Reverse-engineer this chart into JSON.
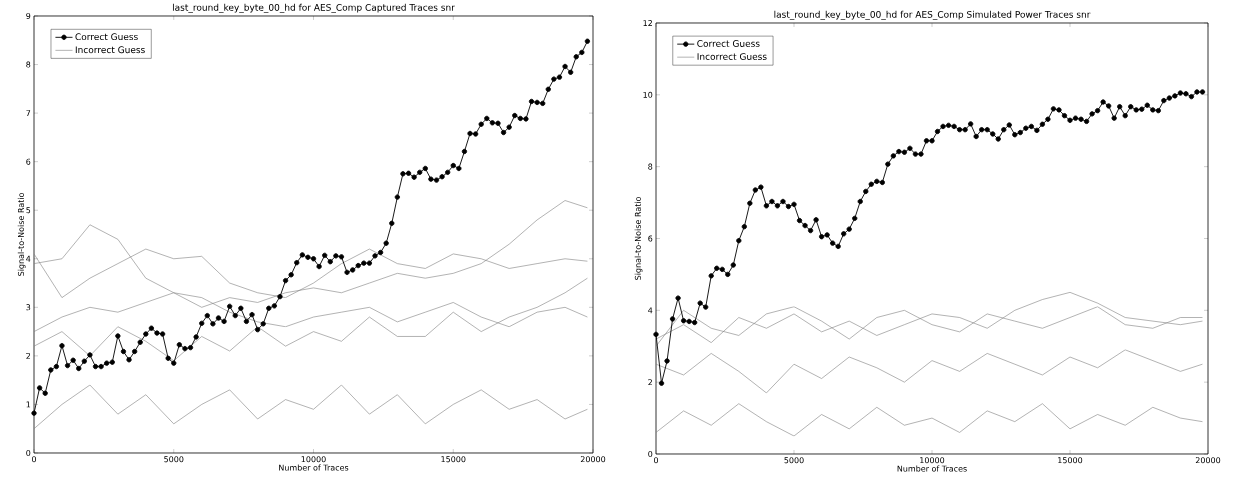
{
  "chart_data": [
    {
      "type": "line",
      "title": "last_round_key_byte_00_hd for AES_Comp Captured Traces snr",
      "xlabel": "Number of Traces",
      "ylabel": "Signal-to-Noise Ratio",
      "xlim": [
        0,
        20000
      ],
      "ylim": [
        0,
        9
      ],
      "xticks": [
        0,
        5000,
        10000,
        15000,
        20000
      ],
      "yticks": [
        0,
        1,
        2,
        3,
        4,
        5,
        6,
        7,
        8,
        9
      ],
      "legend": "top left",
      "series": [
        {
          "name": "Correct Guess",
          "color": "#000000",
          "marker": "circle",
          "x": [
            0,
            200,
            400,
            600,
            800,
            1000,
            1200,
            1400,
            1600,
            1800,
            2000,
            2200,
            2400,
            2600,
            2800,
            3000,
            3200,
            3400,
            3600,
            3800,
            4000,
            4200,
            4400,
            4600,
            4800,
            5000,
            5200,
            5400,
            5600,
            5800,
            6000,
            6200,
            6400,
            6600,
            6800,
            7000,
            7200,
            7400,
            7600,
            7800,
            8000,
            8200,
            8400,
            8600,
            8800,
            9000,
            9200,
            9400,
            9600,
            9800,
            10000,
            10200,
            10400,
            10600,
            10800,
            11000,
            11200,
            11400,
            11600,
            11800,
            12000,
            12200,
            12400,
            12600,
            12800,
            13000,
            13200,
            13400,
            13600,
            13800,
            14000,
            14200,
            14400,
            14600,
            14800,
            15000,
            15200,
            15400,
            15600,
            15800,
            16000,
            16200,
            16400,
            16600,
            16800,
            17000,
            17200,
            17400,
            17600,
            17800,
            18000,
            18200,
            18400,
            18600,
            18800,
            19000,
            19200,
            19400,
            19600,
            19800
          ],
          "values": [
            0.82,
            1.34,
            1.23,
            1.71,
            1.78,
            2.21,
            1.8,
            1.91,
            1.74,
            1.89,
            2.02,
            1.78,
            1.78,
            1.85,
            1.87,
            2.41,
            2.09,
            1.92,
            2.09,
            2.28,
            2.45,
            2.57,
            2.47,
            2.45,
            1.95,
            1.85,
            2.23,
            2.15,
            2.17,
            2.39,
            2.67,
            2.83,
            2.66,
            2.78,
            2.71,
            3.02,
            2.83,
            2.98,
            2.71,
            2.85,
            2.54,
            2.66,
            2.98,
            3.03,
            3.22,
            3.55,
            3.67,
            3.92,
            4.08,
            4.03,
            4.0,
            3.84,
            4.07,
            3.94,
            4.06,
            4.04,
            3.72,
            3.77,
            3.86,
            3.91,
            3.91,
            4.06,
            4.13,
            4.32,
            4.73,
            5.27,
            5.75,
            5.76,
            5.68,
            5.78,
            5.86,
            5.64,
            5.62,
            5.69,
            5.78,
            5.92,
            5.86,
            6.21,
            6.58,
            6.57,
            6.77,
            6.89,
            6.8,
            6.79,
            6.6,
            6.71,
            6.95,
            6.89,
            6.88,
            7.24,
            7.22,
            7.2,
            7.49,
            7.7,
            7.74,
            7.96,
            7.84,
            8.16,
            8.25,
            8.48
          ]
        },
        {
          "name": "Incorrect Guess",
          "color": "#808080",
          "marker": "none",
          "x": [
            0,
            1000,
            2000,
            3000,
            4000,
            5000,
            6000,
            7000,
            8000,
            9000,
            10000,
            11000,
            12000,
            13000,
            14000,
            15000,
            16000,
            17000,
            18000,
            19000,
            19800
          ],
          "values": [
            2.5,
            2.8,
            3.0,
            2.9,
            3.1,
            3.3,
            3.0,
            3.2,
            3.1,
            3.3,
            3.4,
            3.3,
            3.5,
            3.7,
            3.6,
            3.7,
            3.9,
            4.3,
            4.8,
            5.2,
            5.05
          ]
        },
        {
          "color": "#808080",
          "marker": "none",
          "x": [
            0,
            1000,
            2000,
            3000,
            4000,
            5000,
            6000,
            7000,
            8000,
            9000,
            10000,
            11000,
            12000,
            13000,
            14000,
            15000,
            16000,
            17000,
            18000,
            19000,
            19800
          ],
          "values": [
            3.9,
            4.0,
            4.7,
            4.4,
            3.6,
            3.3,
            3.2,
            2.9,
            2.7,
            2.6,
            2.8,
            2.9,
            3.0,
            2.7,
            2.9,
            3.1,
            2.8,
            2.6,
            2.9,
            3.0,
            2.8
          ]
        },
        {
          "color": "#808080",
          "marker": "none",
          "x": [
            0,
            1000,
            2000,
            3000,
            4000,
            5000,
            6000,
            7000,
            8000,
            9000,
            10000,
            11000,
            12000,
            13000,
            14000,
            15000,
            16000,
            17000,
            18000,
            19000,
            19800
          ],
          "values": [
            4.1,
            3.2,
            3.6,
            3.9,
            4.2,
            4.0,
            4.05,
            3.5,
            3.3,
            3.2,
            3.5,
            3.9,
            4.2,
            3.9,
            3.8,
            4.1,
            4.0,
            3.8,
            3.9,
            4.0,
            3.95
          ]
        },
        {
          "color": "#808080",
          "marker": "none",
          "x": [
            0,
            1000,
            2000,
            3000,
            4000,
            5000,
            6000,
            7000,
            8000,
            9000,
            10000,
            11000,
            12000,
            13000,
            14000,
            15000,
            16000,
            17000,
            18000,
            19000,
            19800
          ],
          "values": [
            2.2,
            2.5,
            2.0,
            2.6,
            2.3,
            1.9,
            2.4,
            2.1,
            2.6,
            2.2,
            2.5,
            2.3,
            2.8,
            2.4,
            2.4,
            2.9,
            2.5,
            2.8,
            3.0,
            3.3,
            3.6
          ]
        },
        {
          "color": "#808080",
          "marker": "none",
          "x": [
            0,
            1000,
            2000,
            3000,
            4000,
            5000,
            6000,
            7000,
            8000,
            9000,
            10000,
            11000,
            12000,
            13000,
            14000,
            15000,
            16000,
            17000,
            18000,
            19000,
            19800
          ],
          "values": [
            0.5,
            1.0,
            1.4,
            0.8,
            1.2,
            0.6,
            1.0,
            1.3,
            0.7,
            1.1,
            0.9,
            1.4,
            0.8,
            1.2,
            0.6,
            1.0,
            1.3,
            0.9,
            1.1,
            0.7,
            0.9
          ]
        }
      ]
    },
    {
      "type": "line",
      "title": "last_round_key_byte_00_hd for AES_Comp Simulated Power Traces snr",
      "xlabel": "Number of Traces",
      "ylabel": "Signal-to-Noise Ratio",
      "xlim": [
        0,
        20000
      ],
      "ylim": [
        0,
        12
      ],
      "xticks": [
        0,
        5000,
        10000,
        15000,
        20000
      ],
      "yticks": [
        0,
        2,
        4,
        6,
        8,
        10,
        12
      ],
      "legend": "top left",
      "series": [
        {
          "name": "Correct Guess",
          "color": "#000000",
          "marker": "circle",
          "x": [
            0,
            200,
            400,
            600,
            800,
            1000,
            1200,
            1400,
            1600,
            1800,
            2000,
            2200,
            2400,
            2600,
            2800,
            3000,
            3200,
            3400,
            3600,
            3800,
            4000,
            4200,
            4400,
            4600,
            4800,
            5000,
            5200,
            5400,
            5600,
            5800,
            6000,
            6200,
            6400,
            6600,
            6800,
            7000,
            7200,
            7400,
            7600,
            7800,
            8000,
            8200,
            8400,
            8600,
            8800,
            9000,
            9200,
            9400,
            9600,
            9800,
            10000,
            10200,
            10400,
            10600,
            10800,
            11000,
            11200,
            11400,
            11600,
            11800,
            12000,
            12200,
            12400,
            12600,
            12800,
            13000,
            13200,
            13400,
            13600,
            13800,
            14000,
            14200,
            14400,
            14600,
            14800,
            15000,
            15200,
            15400,
            15600,
            15800,
            16000,
            16200,
            16400,
            16600,
            16800,
            17000,
            17200,
            17400,
            17600,
            17800,
            18000,
            18200,
            18400,
            18600,
            18800,
            19000,
            19200,
            19400,
            19600,
            19800
          ],
          "values": [
            3.33,
            1.97,
            2.59,
            3.76,
            4.34,
            3.71,
            3.69,
            3.66,
            4.2,
            4.09,
            4.96,
            5.17,
            5.14,
            5.0,
            5.26,
            5.94,
            6.33,
            6.98,
            7.35,
            7.43,
            6.91,
            7.03,
            6.91,
            7.03,
            6.89,
            6.95,
            6.5,
            6.36,
            6.22,
            6.52,
            6.05,
            6.1,
            5.87,
            5.78,
            6.13,
            6.26,
            6.56,
            7.03,
            7.31,
            7.51,
            7.59,
            7.56,
            8.07,
            8.3,
            8.42,
            8.4,
            8.51,
            8.35,
            8.35,
            8.72,
            8.72,
            8.98,
            9.12,
            9.15,
            9.12,
            9.03,
            9.03,
            9.19,
            8.84,
            9.03,
            9.03,
            8.91,
            8.77,
            9.03,
            9.16,
            8.89,
            8.95,
            9.07,
            9.12,
            9.01,
            9.18,
            9.32,
            9.61,
            9.58,
            9.42,
            9.29,
            9.35,
            9.32,
            9.26,
            9.47,
            9.56,
            9.8,
            9.69,
            9.35,
            9.67,
            9.42,
            9.67,
            9.58,
            9.6,
            9.71,
            9.58,
            9.56,
            9.84,
            9.91,
            9.97,
            10.05,
            10.03,
            9.95,
            10.08,
            10.08
          ]
        },
        {
          "name": "Incorrect Guess",
          "color": "#808080",
          "marker": "none",
          "x": [
            0,
            1000,
            2000,
            3000,
            4000,
            5000,
            6000,
            7000,
            8000,
            9000,
            10000,
            11000,
            12000,
            13000,
            14000,
            15000,
            16000,
            17000,
            18000,
            19000,
            19800
          ],
          "values": [
            3.2,
            3.6,
            3.1,
            3.8,
            3.5,
            3.9,
            3.4,
            3.7,
            3.3,
            3.6,
            3.9,
            3.8,
            3.5,
            4.0,
            4.3,
            4.5,
            4.2,
            3.8,
            3.7,
            3.6,
            3.7
          ]
        },
        {
          "color": "#808080",
          "marker": "none",
          "x": [
            0,
            1000,
            2000,
            3000,
            4000,
            5000,
            6000,
            7000,
            8000,
            9000,
            10000,
            11000,
            12000,
            13000,
            14000,
            15000,
            16000,
            17000,
            18000,
            19000,
            19800
          ],
          "values": [
            3.0,
            4.0,
            3.5,
            3.3,
            3.9,
            4.1,
            3.7,
            3.2,
            3.8,
            4.0,
            3.6,
            3.4,
            3.9,
            3.7,
            3.5,
            3.8,
            4.1,
            3.6,
            3.5,
            3.8,
            3.8
          ]
        },
        {
          "color": "#808080",
          "marker": "none",
          "x": [
            0,
            1000,
            2000,
            3000,
            4000,
            5000,
            6000,
            7000,
            8000,
            9000,
            10000,
            11000,
            12000,
            13000,
            14000,
            15000,
            16000,
            17000,
            18000,
            19000,
            19800
          ],
          "values": [
            2.5,
            2.2,
            2.8,
            2.3,
            1.7,
            2.5,
            2.1,
            2.7,
            2.4,
            2.0,
            2.6,
            2.3,
            2.8,
            2.5,
            2.2,
            2.7,
            2.4,
            2.9,
            2.6,
            2.3,
            2.5
          ]
        },
        {
          "color": "#808080",
          "marker": "none",
          "x": [
            0,
            1000,
            2000,
            3000,
            4000,
            5000,
            6000,
            7000,
            8000,
            9000,
            10000,
            11000,
            12000,
            13000,
            14000,
            15000,
            16000,
            17000,
            18000,
            19000,
            19800
          ],
          "values": [
            0.6,
            1.2,
            0.8,
            1.4,
            0.9,
            0.5,
            1.1,
            0.7,
            1.3,
            0.8,
            1.0,
            0.6,
            1.2,
            0.9,
            1.4,
            0.7,
            1.1,
            0.8,
            1.3,
            1.0,
            0.9
          ]
        }
      ]
    }
  ]
}
